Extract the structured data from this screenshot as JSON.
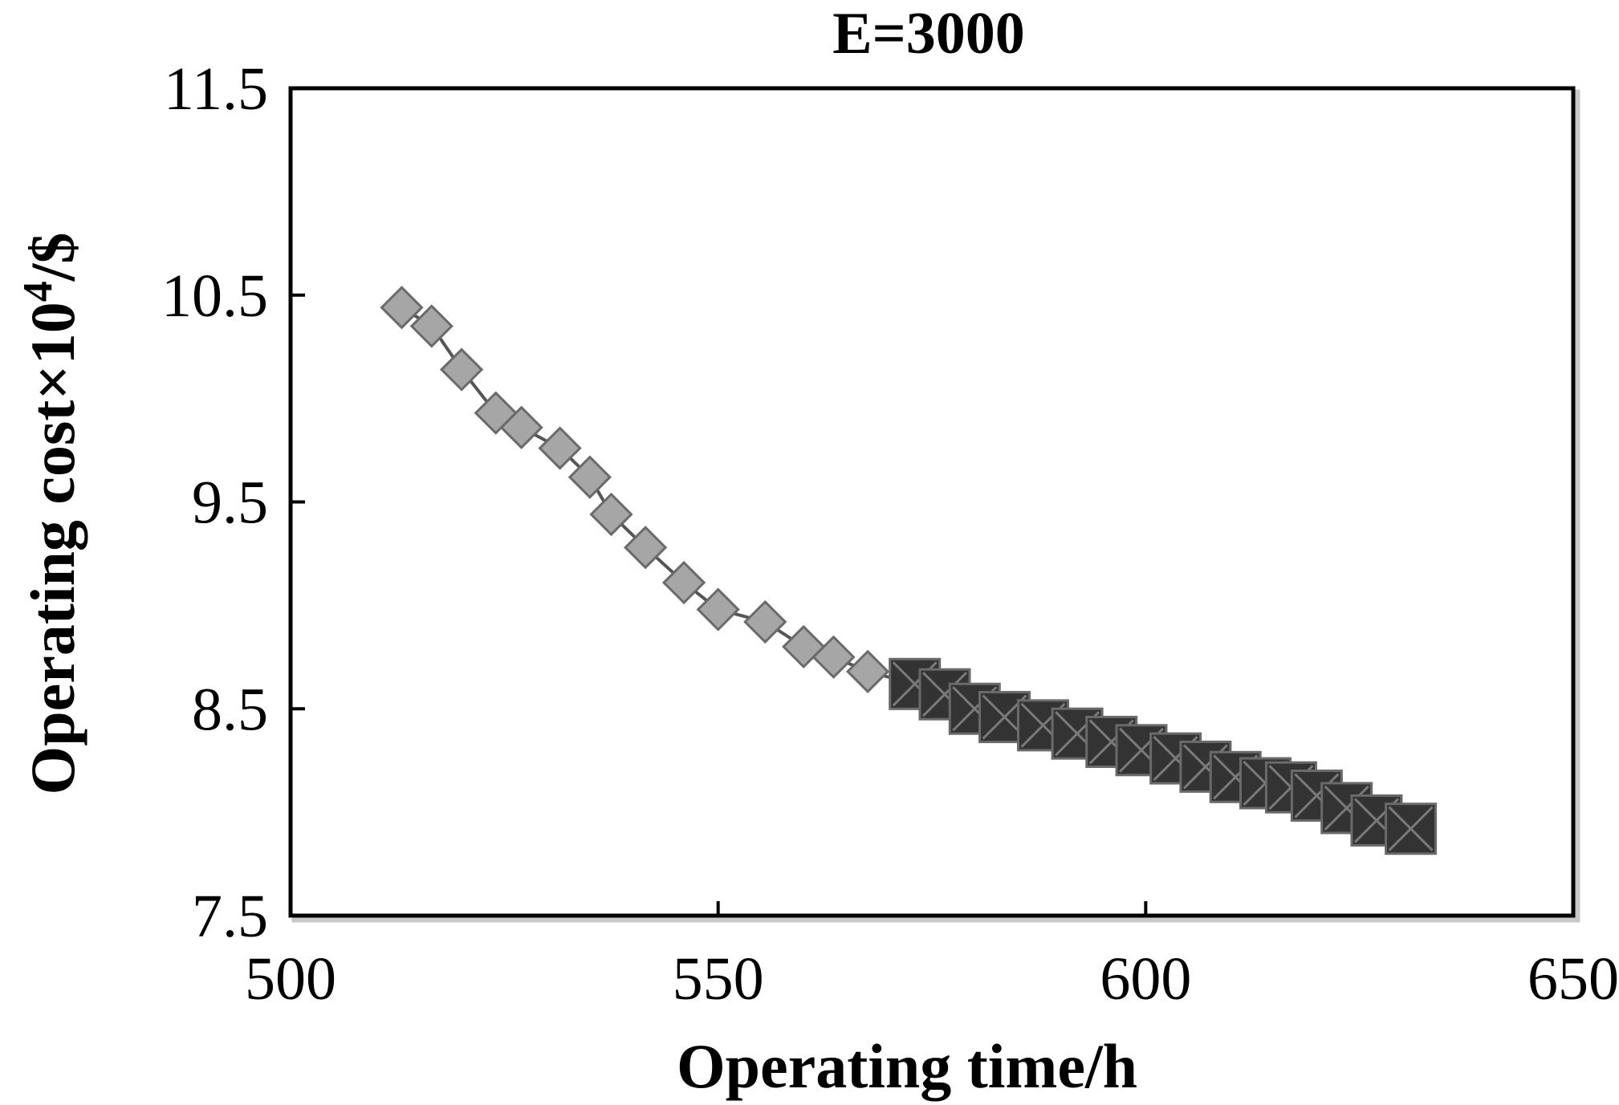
{
  "chart_data": {
    "type": "scatter",
    "title": "E=3000",
    "xlabel": "Operating time/h",
    "ylabel_main": "Operating cost×10",
    "ylabel_sup": "4",
    "ylabel_tail": "/$",
    "xlim": [
      500,
      650
    ],
    "ylim": [
      7.5,
      11.5
    ],
    "xticks": [
      500,
      550,
      600,
      650
    ],
    "xtick_labels": [
      "500",
      "550",
      "600",
      "650"
    ],
    "yticks": [
      7.5,
      8.5,
      9.5,
      10.5,
      11.5
    ],
    "ytick_labels": [
      "7.5",
      "8.5",
      "9.5",
      "10.5",
      "11.5"
    ],
    "grid": false,
    "connecting_line": true,
    "line_color": "#555555",
    "series": [
      {
        "marker": "diamond",
        "color": "#a6a6a6",
        "x": [
          513.0,
          516.5,
          520.0,
          524.0,
          527.0,
          531.5,
          535.0,
          537.5,
          541.5,
          546.0,
          550.0,
          555.5,
          560.0,
          563.5,
          567.5
        ],
        "y": [
          10.44,
          10.35,
          10.14,
          9.93,
          9.86,
          9.76,
          9.62,
          9.44,
          9.28,
          9.11,
          8.98,
          8.92,
          8.8,
          8.75,
          8.68
        ]
      },
      {
        "marker": "square-x",
        "color": "#333333",
        "x": [
          573.0,
          576.5,
          580.0,
          583.5,
          588.0,
          592.0,
          596.0,
          599.5,
          603.5,
          607.0,
          610.5,
          614.0,
          617.0,
          620.0,
          623.5,
          627.0,
          631.0
        ],
        "y": [
          8.62,
          8.57,
          8.5,
          8.46,
          8.42,
          8.38,
          8.34,
          8.3,
          8.26,
          8.22,
          8.17,
          8.14,
          8.12,
          8.08,
          8.02,
          7.96,
          7.92
        ]
      }
    ]
  }
}
